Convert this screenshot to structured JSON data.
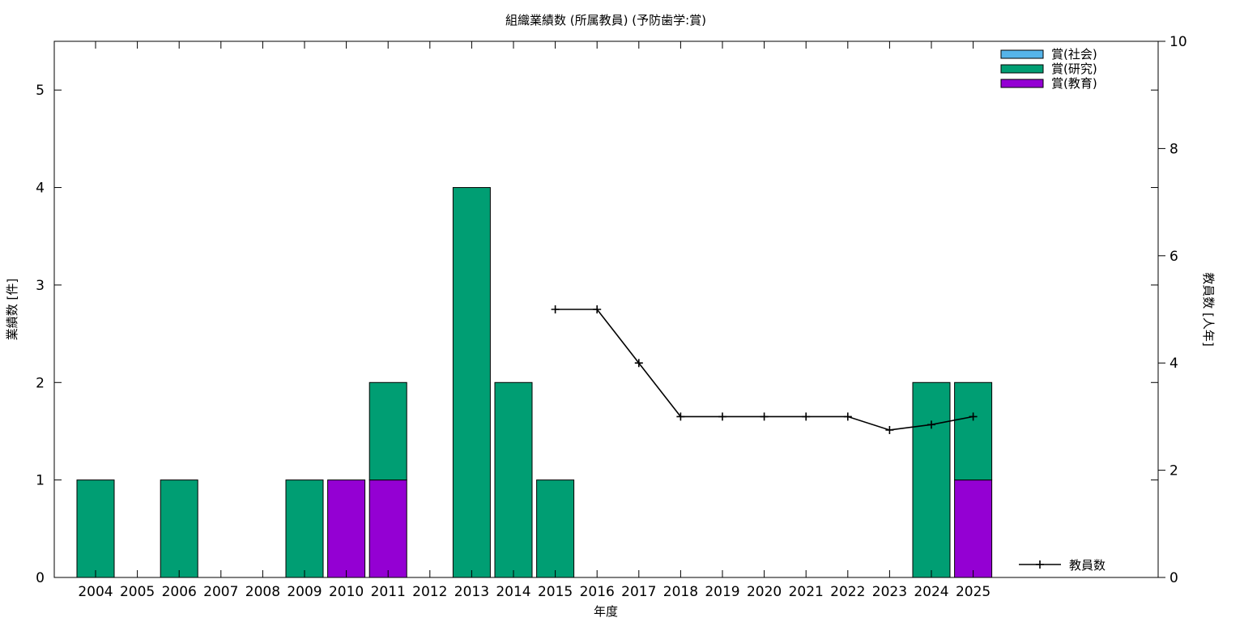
{
  "chart_data": {
    "type": "bar",
    "title": "組織業績数 (所属教員) (予防歯学:賞)",
    "xlabel": "年度",
    "ylabel": "業績数 [件]",
    "y2label": "教員数 [人年]",
    "categories": [
      "2004",
      "2005",
      "2006",
      "2007",
      "2008",
      "2009",
      "2010",
      "2011",
      "2012",
      "2013",
      "2014",
      "2015",
      "2016",
      "2017",
      "2018",
      "2019",
      "2020",
      "2021",
      "2022",
      "2023",
      "2024",
      "2025"
    ],
    "ylim": [
      0,
      5.5
    ],
    "yticks": [
      0,
      1,
      2,
      3,
      4,
      5
    ],
    "y2lim": [
      0,
      10
    ],
    "y2ticks": [
      0,
      2,
      4,
      6,
      8,
      10
    ],
    "stacked": true,
    "series": [
      {
        "name": "賞(教育)",
        "color": "#9400d3",
        "values": [
          0,
          0,
          0,
          0,
          0,
          0,
          1,
          1,
          0,
          0,
          0,
          0,
          0,
          0,
          0,
          0,
          0,
          0,
          0,
          0,
          0,
          1
        ]
      },
      {
        "name": "賞(研究)",
        "color": "#009e73",
        "values": [
          1,
          0,
          1,
          0,
          0,
          1,
          0,
          1,
          0,
          4,
          2,
          1,
          0,
          0,
          0,
          0,
          0,
          0,
          0,
          0,
          2,
          1
        ]
      },
      {
        "name": "賞(社会)",
        "color": "#56b4e9",
        "values": [
          0,
          0,
          0,
          0,
          0,
          0,
          0,
          0,
          0,
          0,
          0,
          0,
          0,
          0,
          0,
          0,
          0,
          0,
          0,
          0,
          0,
          0
        ]
      }
    ],
    "legend_order": [
      "賞(社会)",
      "賞(研究)",
      "賞(教育)"
    ],
    "legend_position": "top-right",
    "line_series": {
      "name": "教員数",
      "axis": "right",
      "color": "#000000",
      "legend_position": "bottom-right",
      "points": [
        {
          "x": "2015",
          "y": 5
        },
        {
          "x": "2016",
          "y": 5
        },
        {
          "x": "2017",
          "y": 4
        },
        {
          "x": "2018",
          "y": 3
        },
        {
          "x": "2019",
          "y": 3
        },
        {
          "x": "2020",
          "y": 3
        },
        {
          "x": "2021",
          "y": 3
        },
        {
          "x": "2022",
          "y": 3
        },
        {
          "x": "2023",
          "y": 2.75
        },
        {
          "x": "2024",
          "y": 2.85
        },
        {
          "x": "2025",
          "y": 3
        }
      ]
    },
    "grid": false
  }
}
